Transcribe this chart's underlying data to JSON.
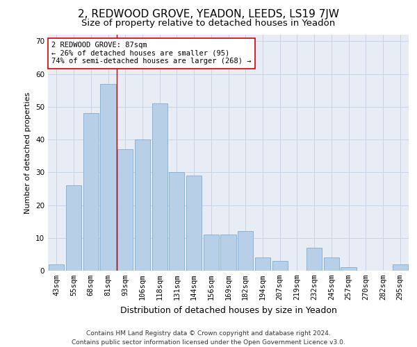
{
  "title_line1": "2, REDWOOD GROVE, YEADON, LEEDS, LS19 7JW",
  "title_line2": "Size of property relative to detached houses in Yeadon",
  "xlabel": "Distribution of detached houses by size in Yeadon",
  "ylabel": "Number of detached properties",
  "categories": [
    "43sqm",
    "55sqm",
    "68sqm",
    "81sqm",
    "93sqm",
    "106sqm",
    "118sqm",
    "131sqm",
    "144sqm",
    "156sqm",
    "169sqm",
    "182sqm",
    "194sqm",
    "207sqm",
    "219sqm",
    "232sqm",
    "245sqm",
    "257sqm",
    "270sqm",
    "282sqm",
    "295sqm"
  ],
  "values": [
    2,
    26,
    48,
    57,
    37,
    40,
    51,
    30,
    29,
    11,
    11,
    12,
    4,
    3,
    0,
    7,
    4,
    1,
    0,
    0,
    2
  ],
  "bar_color": "#b8cfe8",
  "bar_edge_color": "#7aadd4",
  "vline_index": 3.5,
  "annotation_text": "2 REDWOOD GROVE: 87sqm\n← 26% of detached houses are smaller (95)\n74% of semi-detached houses are larger (268) →",
  "annotation_box_color": "#ffffff",
  "annotation_box_edge_color": "#cc0000",
  "vline_color": "#cc0000",
  "ylim": [
    0,
    72
  ],
  "yticks": [
    0,
    10,
    20,
    30,
    40,
    50,
    60,
    70
  ],
  "grid_color": "#c8d4e8",
  "bg_color": "#e8edf5",
  "footer_text": "Contains HM Land Registry data © Crown copyright and database right 2024.\nContains public sector information licensed under the Open Government Licence v3.0.",
  "title1_fontsize": 11,
  "title2_fontsize": 9.5,
  "xlabel_fontsize": 9,
  "ylabel_fontsize": 8,
  "tick_fontsize": 7.5,
  "annotation_fontsize": 7.5,
  "footer_fontsize": 6.5
}
